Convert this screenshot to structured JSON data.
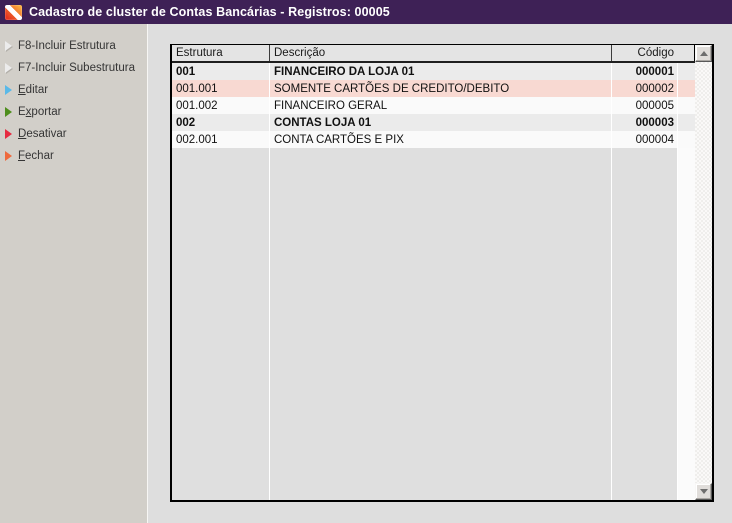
{
  "window": {
    "title": "Cadastro de cluster de Contas Bancárias - Registros: 00005",
    "icon": "app-logo-icon",
    "record_count": "00005"
  },
  "sidebar": {
    "items": [
      {
        "icon": "arrow-right-icon",
        "color": "#ececec",
        "pre": "",
        "u": "",
        "post": "F8-Incluir Estrutura"
      },
      {
        "icon": "arrow-right-icon",
        "color": "#ececec",
        "pre": "",
        "u": "",
        "post": "F7-Incluir Subestrutura"
      },
      {
        "icon": "arrow-right-icon",
        "color": "#5ab9e8",
        "pre": "",
        "u": "E",
        "post": "ditar"
      },
      {
        "icon": "arrow-right-icon",
        "color": "#4e8e1c",
        "pre": "E",
        "u": "x",
        "post": "portar"
      },
      {
        "icon": "arrow-right-icon",
        "color": "#e62b41",
        "pre": "",
        "u": "D",
        "post": "esativar"
      },
      {
        "icon": "arrow-right-icon",
        "color": "#ef6a3d",
        "pre": "",
        "u": "F",
        "post": "echar"
      }
    ]
  },
  "table": {
    "columns": [
      "Estrutura",
      "Descrição",
      "Código"
    ],
    "rows": [
      {
        "estrutura": "001",
        "descricao": "FINANCEIRO DA LOJA 01",
        "codigo": "000001"
      },
      {
        "estrutura": "001.001",
        "descricao": "SOMENTE CARTÕES DE CREDITO/DEBITO",
        "codigo": "000002"
      },
      {
        "estrutura": "001.002",
        "descricao": "FINANCEIRO GERAL",
        "codigo": "000005"
      },
      {
        "estrutura": "002",
        "descricao": "CONTAS LOJA 01",
        "codigo": "000003"
      },
      {
        "estrutura": "002.001",
        "descricao": "CONTA CARTÕES E PIX",
        "codigo": "000004"
      }
    ]
  },
  "colors": {
    "titlebar": "#3e2156",
    "titlebar_text": "#ffffff",
    "sidebar_bg": "#d2cfc9",
    "panel_bg": "#dedede",
    "header_bg": "#e4e4e4",
    "group_row_bg": "#ebebeb",
    "normal_row_bg": "#fafafa",
    "selected_row_bg": "#f8d9d2",
    "logo_orange": "#fbae3d",
    "logo_red": "#e63420"
  }
}
